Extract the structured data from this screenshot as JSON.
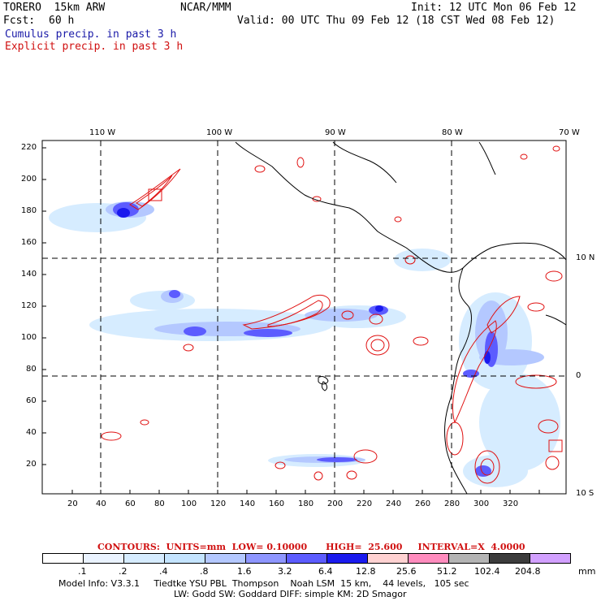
{
  "header": {
    "model": "TORERO  15km ARW",
    "org": "NCAR/MMM",
    "init": "Init: 12 UTC Mon 06 Feb 12",
    "fcst_label": "Fcst:",
    "fcst_value": "60 h",
    "valid": "Valid: 00 UTC Thu 09 Feb 12 (18 CST Wed 08 Feb 12)",
    "cumulus": "Cumulus precip. in past 3 h",
    "explicit": "Explicit precip. in past 3 h"
  },
  "axes": {
    "top_lon": [
      "110 W",
      "100 W",
      "90 W",
      "80 W",
      "70 W"
    ],
    "right_lat": [
      "10 N",
      "0",
      "10 S"
    ],
    "y_ticks": [
      "220",
      "200",
      "180",
      "160",
      "140",
      "120",
      "100",
      "80",
      "60",
      "40",
      "20"
    ],
    "x_ticks": [
      "20",
      "40",
      "60",
      "80",
      "100",
      "120",
      "140",
      "160",
      "180",
      "200",
      "220",
      "240",
      "260",
      "280",
      "300",
      "320"
    ]
  },
  "contours_line": "CONTOURS:  UNITS=mm  LOW= 0.10000      HIGH=  25.600     INTERVAL=X  4.0000",
  "colorbar": {
    "labels": [
      ".1",
      ".2",
      ".4",
      ".8",
      "1.6",
      "3.2",
      "6.4",
      "12.8",
      "25.6",
      "51.2",
      "102.4",
      "204.8"
    ],
    "unit": "mm",
    "colors": [
      "#ffffff",
      "#eaf3ff",
      "#d6ecff",
      "#c4e4ff",
      "#b4c8ff",
      "#8e96ff",
      "#5c5cff",
      "#1a1aee",
      "#ffd2d2",
      "#ff8cbe",
      "#b4b4b4",
      "#3c3c3c",
      "#d2a0ff"
    ]
  },
  "footer": {
    "line1": "Model Info: V3.3.1     Tiedtke YSU PBL  Thompson    Noah LSM  15 km,    44 levels,   105 sec",
    "line2": "LW: Godd SW: Goddard DIFF: simple KM: 2D Smagor"
  }
}
